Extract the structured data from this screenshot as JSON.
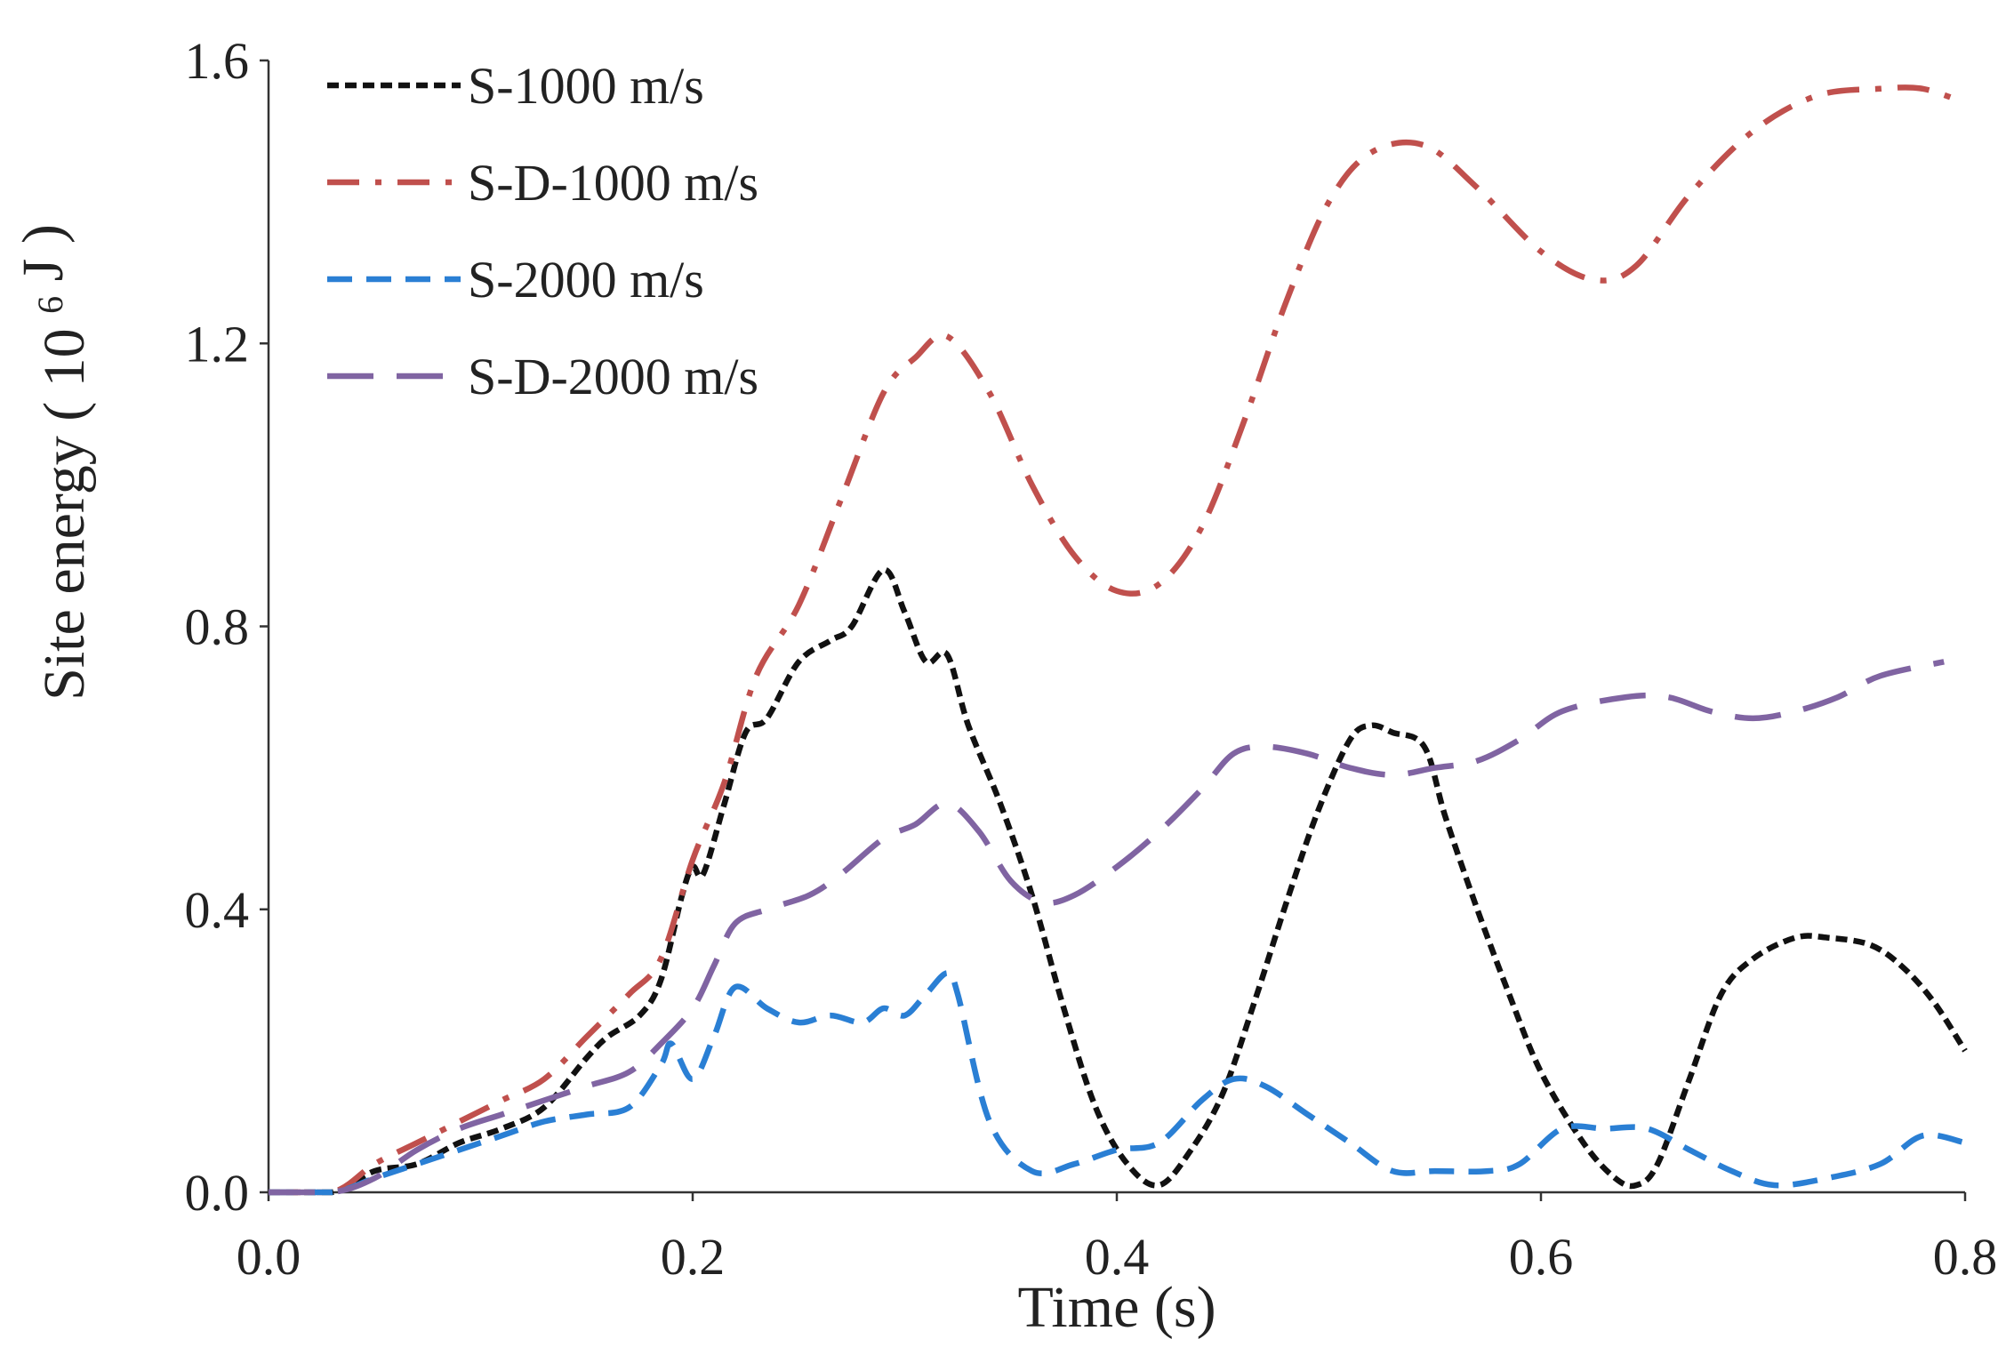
{
  "chart_data": {
    "type": "line",
    "title": "",
    "xlabel": "Time (s)",
    "ylabel": "Site energy",
    "ylabel_unit_base": "10",
    "ylabel_unit_exp": "6",
    "ylabel_unit_tail": "J",
    "xlim": [
      0,
      0.8
    ],
    "ylim": [
      0,
      1.6
    ],
    "xticks": [
      0.0,
      0.2,
      0.4,
      0.6,
      0.8
    ],
    "xtick_labels": [
      "0.0",
      "0.2",
      "0.4",
      "0.6",
      "0.8"
    ],
    "yticks": [
      0.0,
      0.4,
      0.8,
      1.2,
      1.6
    ],
    "ytick_labels": [
      "0.0",
      "0.4",
      "0.8",
      "1.2",
      "1.6"
    ],
    "grid": false,
    "legend_position": "top-left",
    "series": [
      {
        "name": "S-1000 m/s",
        "color": "#111111",
        "dash": "short-dash",
        "x": [
          0,
          0.03,
          0.05,
          0.07,
          0.09,
          0.11,
          0.13,
          0.15,
          0.16,
          0.175,
          0.185,
          0.195,
          0.2,
          0.205,
          0.215,
          0.225,
          0.235,
          0.25,
          0.265,
          0.275,
          0.29,
          0.3,
          0.31,
          0.32,
          0.33,
          0.345,
          0.36,
          0.375,
          0.39,
          0.405,
          0.42,
          0.435,
          0.45,
          0.465,
          0.48,
          0.495,
          0.51,
          0.52,
          0.53,
          0.545,
          0.555,
          0.57,
          0.585,
          0.6,
          0.62,
          0.635,
          0.645,
          0.655,
          0.67,
          0.685,
          0.7,
          0.72,
          0.735,
          0.755,
          0.77,
          0.785,
          0.8
        ],
        "values": [
          0,
          0,
          0.03,
          0.04,
          0.07,
          0.09,
          0.12,
          0.19,
          0.22,
          0.25,
          0.3,
          0.42,
          0.46,
          0.45,
          0.55,
          0.65,
          0.67,
          0.75,
          0.78,
          0.8,
          0.88,
          0.82,
          0.75,
          0.76,
          0.66,
          0.55,
          0.42,
          0.26,
          0.12,
          0.04,
          0.01,
          0.06,
          0.14,
          0.27,
          0.41,
          0.54,
          0.64,
          0.66,
          0.65,
          0.63,
          0.53,
          0.4,
          0.28,
          0.17,
          0.07,
          0.02,
          0.01,
          0.04,
          0.16,
          0.28,
          0.33,
          0.36,
          0.36,
          0.35,
          0.32,
          0.27,
          0.2
        ]
      },
      {
        "name": "S-D-1000 m/s",
        "color": "#c0504d",
        "dash": "dash-dot",
        "x": [
          0,
          0.03,
          0.05,
          0.07,
          0.09,
          0.11,
          0.13,
          0.15,
          0.17,
          0.185,
          0.2,
          0.215,
          0.23,
          0.25,
          0.27,
          0.29,
          0.305,
          0.32,
          0.34,
          0.36,
          0.38,
          0.4,
          0.42,
          0.44,
          0.46,
          0.48,
          0.5,
          0.52,
          0.545,
          0.57,
          0.6,
          0.625,
          0.645,
          0.67,
          0.7,
          0.73,
          0.76,
          0.78,
          0.8
        ],
        "values": [
          0,
          0,
          0.04,
          0.07,
          0.1,
          0.13,
          0.16,
          0.22,
          0.28,
          0.33,
          0.47,
          0.58,
          0.73,
          0.83,
          0.98,
          1.13,
          1.18,
          1.21,
          1.13,
          1.0,
          0.9,
          0.85,
          0.86,
          0.94,
          1.09,
          1.26,
          1.4,
          1.47,
          1.48,
          1.42,
          1.33,
          1.29,
          1.31,
          1.41,
          1.5,
          1.55,
          1.56,
          1.56,
          1.54
        ]
      },
      {
        "name": "S-2000 m/s",
        "color": "#2a7fd4",
        "dash": "medium-dash",
        "x": [
          0,
          0.03,
          0.05,
          0.07,
          0.09,
          0.11,
          0.13,
          0.15,
          0.17,
          0.185,
          0.19,
          0.2,
          0.21,
          0.22,
          0.235,
          0.25,
          0.265,
          0.28,
          0.29,
          0.3,
          0.31,
          0.32,
          0.325,
          0.34,
          0.36,
          0.38,
          0.4,
          0.42,
          0.44,
          0.455,
          0.47,
          0.49,
          0.51,
          0.53,
          0.55,
          0.575,
          0.59,
          0.61,
          0.63,
          0.65,
          0.67,
          0.69,
          0.71,
          0.735,
          0.76,
          0.78,
          0.8
        ],
        "values": [
          0,
          0,
          0.02,
          0.04,
          0.06,
          0.08,
          0.1,
          0.11,
          0.12,
          0.18,
          0.21,
          0.16,
          0.22,
          0.29,
          0.26,
          0.24,
          0.25,
          0.24,
          0.26,
          0.25,
          0.28,
          0.31,
          0.28,
          0.1,
          0.03,
          0.04,
          0.06,
          0.07,
          0.13,
          0.16,
          0.15,
          0.11,
          0.07,
          0.03,
          0.03,
          0.03,
          0.04,
          0.09,
          0.09,
          0.09,
          0.06,
          0.03,
          0.01,
          0.02,
          0.04,
          0.08,
          0.07
        ]
      },
      {
        "name": "S-D-2000 m/s",
        "color": "#8064a2",
        "dash": "long-dash",
        "x": [
          0,
          0.03,
          0.05,
          0.07,
          0.09,
          0.11,
          0.13,
          0.15,
          0.17,
          0.185,
          0.2,
          0.21,
          0.22,
          0.235,
          0.255,
          0.27,
          0.29,
          0.305,
          0.32,
          0.335,
          0.35,
          0.365,
          0.38,
          0.4,
          0.42,
          0.44,
          0.455,
          0.47,
          0.49,
          0.51,
          0.53,
          0.55,
          0.57,
          0.59,
          0.61,
          0.64,
          0.66,
          0.68,
          0.7,
          0.72,
          0.74,
          0.76,
          0.79
        ],
        "values": [
          0,
          0,
          0.02,
          0.06,
          0.09,
          0.11,
          0.13,
          0.15,
          0.17,
          0.21,
          0.26,
          0.32,
          0.38,
          0.4,
          0.42,
          0.45,
          0.5,
          0.52,
          0.55,
          0.51,
          0.44,
          0.41,
          0.42,
          0.46,
          0.51,
          0.57,
          0.62,
          0.63,
          0.62,
          0.6,
          0.59,
          0.6,
          0.61,
          0.64,
          0.68,
          0.7,
          0.7,
          0.68,
          0.67,
          0.68,
          0.7,
          0.73,
          0.75
        ]
      }
    ]
  }
}
